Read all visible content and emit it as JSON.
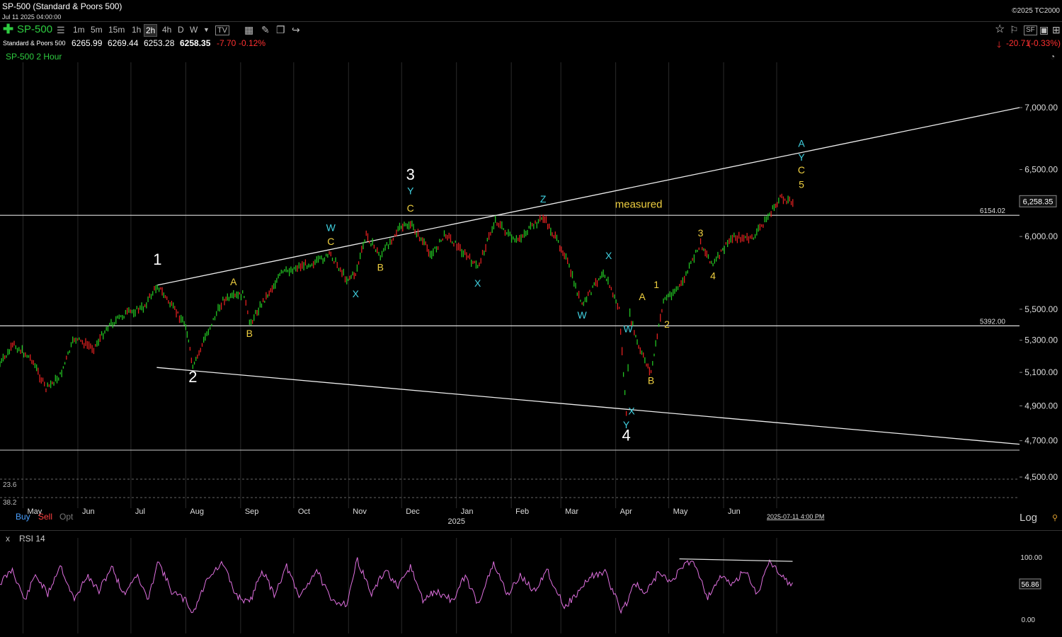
{
  "header": {
    "title": "SP-500 (Standard & Poors 500)",
    "datetime": "Jul 11 2025 04:00:00",
    "copyright": "©2025 TC2000"
  },
  "toolbar": {
    "symbol": "SP-500",
    "timeframes": [
      "1m",
      "5m",
      "15m",
      "1h",
      "2h",
      "4h",
      "D",
      "W"
    ],
    "active_timeframe": "2h",
    "icons": [
      "add-symbol-icon",
      "list-icon",
      "tv-icon",
      "grid-icon",
      "pencil-icon",
      "layers-icon",
      "share-icon"
    ],
    "right_icons": [
      "star-icon",
      "flag-icon",
      "sf-icon",
      "save-icon",
      "more-icon"
    ]
  },
  "quote": {
    "name": "Standard & Poors 500",
    "open": "6265.99",
    "high": "6269.44",
    "low": "6253.28",
    "last": "6258.35",
    "change": "-7.70",
    "change_pct": "-0.12%",
    "day_change": "-20.71",
    "day_change_pct": "(-0.33%)"
  },
  "chart_title": "SP-500 2 Hour",
  "colors": {
    "up_bar": "#22c422",
    "down_bar": "#e02020",
    "white_label": "#ffffff",
    "yellow_label": "#f0d040",
    "cyan_label": "#40d0e0",
    "rsi_line": "#e070e0"
  },
  "chart_data": {
    "type": "line",
    "scale": "log",
    "ylim": [
      4400,
      7200
    ],
    "y_ticks": [
      "7,000.00",
      "6,500.00",
      "6,000.00",
      "5,500.00",
      "5,300.00",
      "5,100.00",
      "4,900.00",
      "4,700.00",
      "4,500.00"
    ],
    "x_ticks": [
      "May",
      "Jun",
      "Jul",
      "Aug",
      "Sep",
      "Oct",
      "Nov",
      "Dec",
      "Jan",
      "Feb",
      "Mar",
      "Apr",
      "May",
      "Jun"
    ],
    "year_label": "2025",
    "cursor_label": "2025-07-11 4:00 PM",
    "last_price_label": "6,258.35",
    "levels": [
      {
        "label": "6154.02",
        "value": 6154.02
      },
      {
        "label": "5392.00",
        "value": 5392.0
      }
    ],
    "price_path": [
      [
        "2024-04-18",
        5150
      ],
      [
        "2024-04-26",
        5270
      ],
      [
        "2024-05-06",
        5180
      ],
      [
        "2024-05-14",
        5000
      ],
      [
        "2024-05-22",
        5080
      ],
      [
        "2024-05-30",
        5310
      ],
      [
        "2024-06-10",
        5250
      ],
      [
        "2024-06-18",
        5390
      ],
      [
        "2024-06-28",
        5470
      ],
      [
        "2024-07-08",
        5510
      ],
      [
        "2024-07-16",
        5660
      ],
      [
        "2024-07-24",
        5520
      ],
      [
        "2024-08-01",
        5400
      ],
      [
        "2024-08-05",
        5120
      ],
      [
        "2024-08-12",
        5320
      ],
      [
        "2024-08-22",
        5560
      ],
      [
        "2024-09-03",
        5600
      ],
      [
        "2024-09-06",
        5400
      ],
      [
        "2024-09-12",
        5520
      ],
      [
        "2024-09-24",
        5740
      ],
      [
        "2024-10-04",
        5790
      ],
      [
        "2024-10-14",
        5820
      ],
      [
        "2024-10-22",
        5870
      ],
      [
        "2024-10-31",
        5700
      ],
      [
        "2024-11-05",
        5740
      ],
      [
        "2024-11-11",
        6010
      ],
      [
        "2024-11-19",
        5860
      ],
      [
        "2024-11-29",
        6050
      ],
      [
        "2024-12-06",
        6090
      ],
      [
        "2024-12-18",
        5870
      ],
      [
        "2024-12-26",
        6020
      ],
      [
        "2025-01-13",
        5780
      ],
      [
        "2025-01-23",
        6120
      ],
      [
        "2025-02-03",
        5960
      ],
      [
        "2025-02-19",
        6140
      ],
      [
        "2025-03-03",
        5880
      ],
      [
        "2025-03-13",
        5520
      ],
      [
        "2025-03-25",
        5760
      ],
      [
        "2025-04-03",
        5500
      ],
      [
        "2025-04-07",
        4840
      ],
      [
        "2025-04-09",
        5460
      ],
      [
        "2025-04-14",
        5250
      ],
      [
        "2025-04-21",
        5100
      ],
      [
        "2025-04-28",
        5560
      ],
      [
        "2025-05-08",
        5660
      ],
      [
        "2025-05-19",
        5950
      ],
      [
        "2025-05-26",
        5800
      ],
      [
        "2025-06-06",
        6000
      ],
      [
        "2025-06-17",
        5980
      ],
      [
        "2025-06-27",
        6160
      ],
      [
        "2025-07-03",
        6280
      ],
      [
        "2025-07-11",
        6258.35
      ]
    ],
    "channel_lines": [
      {
        "from": [
          "2024-07-16",
          5660
        ],
        "to": [
          "2025-07-15",
          7000
        ]
      },
      {
        "from": [
          "2024-07-16",
          5130
        ],
        "to": [
          "2025-07-15",
          4680
        ]
      }
    ],
    "wave_labels": [
      {
        "text": "1",
        "date": "2024-07-16",
        "price": 5800,
        "color": "white",
        "size": "large"
      },
      {
        "text": "2",
        "date": "2024-08-05",
        "price": 5040,
        "color": "white",
        "size": "large"
      },
      {
        "text": "A",
        "date": "2024-08-28",
        "price": 5660,
        "color": "yellow"
      },
      {
        "text": "B",
        "date": "2024-09-06",
        "price": 5320,
        "color": "yellow"
      },
      {
        "text": "W",
        "date": "2024-10-22",
        "price": 6040,
        "color": "cyan"
      },
      {
        "text": "C",
        "date": "2024-10-22",
        "price": 5940,
        "color": "yellow"
      },
      {
        "text": "X",
        "date": "2024-11-05",
        "price": 5580,
        "color": "cyan"
      },
      {
        "text": "B",
        "date": "2024-11-19",
        "price": 5760,
        "color": "yellow"
      },
      {
        "text": "3",
        "date": "2024-12-06",
        "price": 6420,
        "color": "white",
        "size": "large"
      },
      {
        "text": "Y",
        "date": "2024-12-06",
        "price": 6310,
        "color": "cyan"
      },
      {
        "text": "C",
        "date": "2024-12-06",
        "price": 6180,
        "color": "yellow"
      },
      {
        "text": "X",
        "date": "2025-01-13",
        "price": 5650,
        "color": "cyan"
      },
      {
        "text": "Z",
        "date": "2025-02-19",
        "price": 6250,
        "color": "cyan"
      },
      {
        "text": "measured",
        "date": "2025-04-14",
        "price": 6210,
        "color": "yellow"
      },
      {
        "text": "X",
        "date": "2025-03-28",
        "price": 5840,
        "color": "cyan"
      },
      {
        "text": "W",
        "date": "2025-03-13",
        "price": 5440,
        "color": "cyan"
      },
      {
        "text": "A",
        "date": "2025-04-16",
        "price": 5560,
        "color": "yellow"
      },
      {
        "text": "W",
        "date": "2025-04-08",
        "price": 5350,
        "color": "cyan"
      },
      {
        "text": "1",
        "date": "2025-04-24",
        "price": 5640,
        "color": "yellow"
      },
      {
        "text": "2",
        "date": "2025-04-30",
        "price": 5380,
        "color": "yellow"
      },
      {
        "text": "B",
        "date": "2025-04-21",
        "price": 5030,
        "color": "yellow"
      },
      {
        "text": "X",
        "date": "2025-04-10",
        "price": 4850,
        "color": "cyan"
      },
      {
        "text": "Y",
        "date": "2025-04-07",
        "price": 4770,
        "color": "cyan"
      },
      {
        "text": "4",
        "date": "2025-04-07",
        "price": 4700,
        "color": "white",
        "size": "large"
      },
      {
        "text": "3",
        "date": "2025-05-19",
        "price": 6000,
        "color": "yellow"
      },
      {
        "text": "4",
        "date": "2025-05-26",
        "price": 5700,
        "color": "yellow"
      },
      {
        "text": "A",
        "date": "2025-07-15",
        "price": 6680,
        "color": "cyan"
      },
      {
        "text": "Y",
        "date": "2025-07-15",
        "price": 6570,
        "color": "cyan"
      },
      {
        "text": "C",
        "date": "2025-07-15",
        "price": 6470,
        "color": "yellow"
      },
      {
        "text": "5",
        "date": "2025-07-15",
        "price": 6360,
        "color": "yellow"
      }
    ],
    "fib_labels": [
      "23.6",
      "38.2"
    ]
  },
  "rsi": {
    "title": "RSI 14",
    "close_label": "x",
    "ylim": [
      0,
      100
    ],
    "y_ticks": [
      "100.00",
      "0.00"
    ],
    "last_value": "56.86",
    "divergence_line": {
      "from": [
        "2025-05-15",
        97
      ],
      "to": [
        "2025-07-14",
        93
      ]
    },
    "path": [
      [
        "2024-04-18",
        58
      ],
      [
        "2024-04-25",
        80
      ],
      [
        "2024-05-02",
        30
      ],
      [
        "2024-05-08",
        72
      ],
      [
        "2024-05-15",
        40
      ],
      [
        "2024-05-22",
        88
      ],
      [
        "2024-05-30",
        30
      ],
      [
        "2024-06-06",
        70
      ],
      [
        "2024-06-13",
        45
      ],
      [
        "2024-06-20",
        85
      ],
      [
        "2024-06-27",
        40
      ],
      [
        "2024-07-04",
        72
      ],
      [
        "2024-07-11",
        30
      ],
      [
        "2024-07-16",
        96
      ],
      [
        "2024-07-24",
        45
      ],
      [
        "2024-08-01",
        30
      ],
      [
        "2024-08-05",
        10
      ],
      [
        "2024-08-14",
        70
      ],
      [
        "2024-08-22",
        90
      ],
      [
        "2024-08-29",
        40
      ],
      [
        "2024-09-06",
        25
      ],
      [
        "2024-09-13",
        80
      ],
      [
        "2024-09-20",
        40
      ],
      [
        "2024-09-27",
        85
      ],
      [
        "2024-10-04",
        35
      ],
      [
        "2024-10-14",
        80
      ],
      [
        "2024-10-22",
        30
      ],
      [
        "2024-10-31",
        25
      ],
      [
        "2024-11-06",
        96
      ],
      [
        "2024-11-14",
        40
      ],
      [
        "2024-11-22",
        80
      ],
      [
        "2024-11-29",
        50
      ],
      [
        "2024-12-06",
        85
      ],
      [
        "2024-12-13",
        30
      ],
      [
        "2024-12-20",
        45
      ],
      [
        "2024-12-30",
        30
      ],
      [
        "2025-01-06",
        70
      ],
      [
        "2025-01-13",
        25
      ],
      [
        "2025-01-22",
        88
      ],
      [
        "2025-01-30",
        40
      ],
      [
        "2025-02-06",
        70
      ],
      [
        "2025-02-14",
        45
      ],
      [
        "2025-02-21",
        80
      ],
      [
        "2025-03-03",
        20
      ],
      [
        "2025-03-10",
        40
      ],
      [
        "2025-03-18",
        70
      ],
      [
        "2025-03-26",
        75
      ],
      [
        "2025-04-04",
        15
      ],
      [
        "2025-04-08",
        30
      ],
      [
        "2025-04-11",
        60
      ],
      [
        "2025-04-18",
        40
      ],
      [
        "2025-04-25",
        75
      ],
      [
        "2025-05-02",
        60
      ],
      [
        "2025-05-09",
        85
      ],
      [
        "2025-05-15",
        96
      ],
      [
        "2025-05-23",
        35
      ],
      [
        "2025-05-30",
        70
      ],
      [
        "2025-06-06",
        55
      ],
      [
        "2025-06-13",
        80
      ],
      [
        "2025-06-20",
        40
      ],
      [
        "2025-06-27",
        93
      ],
      [
        "2025-07-03",
        75
      ],
      [
        "2025-07-09",
        55
      ],
      [
        "2025-07-11",
        56.86
      ]
    ]
  },
  "bottom_panel": {
    "buy_label": "Buy",
    "sell_label": "Sell",
    "opt_label": "Opt",
    "log_label": "Log"
  }
}
